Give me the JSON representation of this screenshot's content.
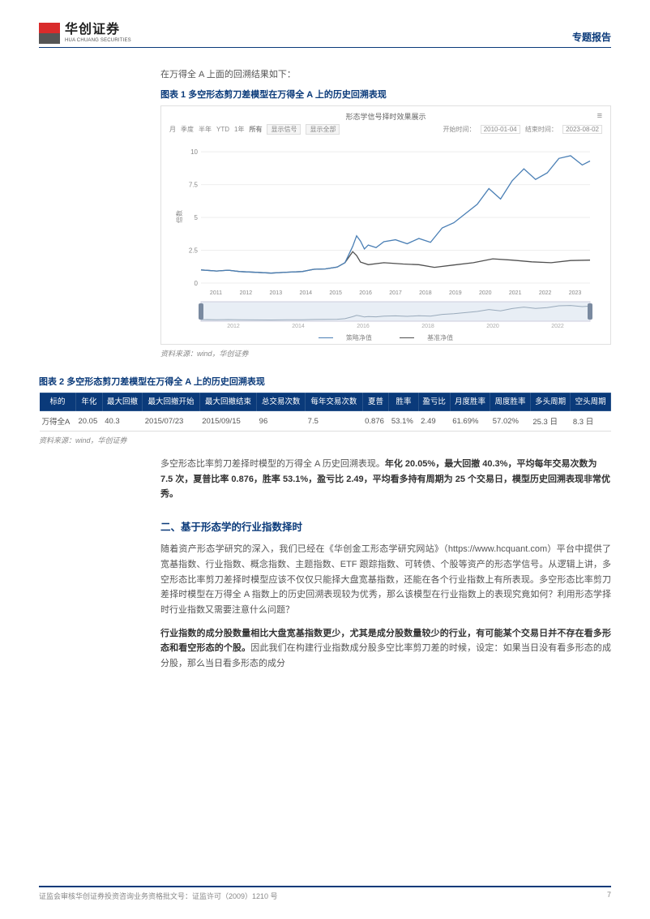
{
  "header": {
    "logo_cn": "华创证券",
    "logo_en": "HUA CHUANG SECURITIES",
    "logo_colors": [
      "#d92b2b",
      "#d92b2b",
      "#555555",
      "#555555"
    ],
    "doc_type": "专题报告"
  },
  "intro_line": "在万得全 A 上面的回溯结果如下：",
  "chart1": {
    "title": "图表 1   多空形态剪刀差模型在万得全 A 上的历史回溯表现",
    "chart_head": "形态学信号择时效果展示",
    "range_labels": [
      "月",
      "季度",
      "半年",
      "YTD",
      "1年",
      "所有"
    ],
    "btn_signal": "显示信号",
    "btn_all": "显示全部",
    "start_label": "开始时间：",
    "start_value": "2010-01-04",
    "end_label": "结束时间：",
    "end_value": "2023-08-02",
    "ylabel": "倍数",
    "y_ticks": [
      0,
      2.5,
      5,
      7.5,
      10
    ],
    "x_ticks": [
      "2011",
      "2012",
      "2013",
      "2014",
      "2015",
      "2016",
      "2017",
      "2018",
      "2019",
      "2020",
      "2021",
      "2022",
      "2023"
    ],
    "brush_ticks": [
      "2012",
      "2014",
      "2016",
      "2018",
      "2020",
      "2022"
    ],
    "line_color_strategy": "#4a7fb5",
    "line_color_base": "#505050",
    "grid_color": "#eeeeee",
    "legend_strategy": "策略净值",
    "legend_base": "基准净值",
    "strategy_series": [
      [
        0,
        1.0
      ],
      [
        0.04,
        0.92
      ],
      [
        0.07,
        0.98
      ],
      [
        0.1,
        0.88
      ],
      [
        0.14,
        0.82
      ],
      [
        0.18,
        0.76
      ],
      [
        0.22,
        0.83
      ],
      [
        0.26,
        0.88
      ],
      [
        0.29,
        1.05
      ],
      [
        0.32,
        1.08
      ],
      [
        0.35,
        1.22
      ],
      [
        0.37,
        1.55
      ],
      [
        0.39,
        2.8
      ],
      [
        0.4,
        3.6
      ],
      [
        0.41,
        3.2
      ],
      [
        0.42,
        2.6
      ],
      [
        0.43,
        2.9
      ],
      [
        0.45,
        2.7
      ],
      [
        0.47,
        3.15
      ],
      [
        0.5,
        3.3
      ],
      [
        0.53,
        3.0
      ],
      [
        0.56,
        3.4
      ],
      [
        0.59,
        3.1
      ],
      [
        0.62,
        4.2
      ],
      [
        0.65,
        4.6
      ],
      [
        0.68,
        5.3
      ],
      [
        0.71,
        6.0
      ],
      [
        0.74,
        7.2
      ],
      [
        0.77,
        6.4
      ],
      [
        0.8,
        7.8
      ],
      [
        0.83,
        8.7
      ],
      [
        0.86,
        7.9
      ],
      [
        0.89,
        8.4
      ],
      [
        0.92,
        9.5
      ],
      [
        0.95,
        9.7
      ],
      [
        0.98,
        9.0
      ],
      [
        1.0,
        9.3
      ]
    ],
    "base_series": [
      [
        0,
        1.0
      ],
      [
        0.04,
        0.92
      ],
      [
        0.07,
        0.98
      ],
      [
        0.1,
        0.88
      ],
      [
        0.14,
        0.82
      ],
      [
        0.18,
        0.76
      ],
      [
        0.22,
        0.83
      ],
      [
        0.26,
        0.88
      ],
      [
        0.29,
        1.05
      ],
      [
        0.32,
        1.08
      ],
      [
        0.35,
        1.22
      ],
      [
        0.37,
        1.55
      ],
      [
        0.39,
        2.4
      ],
      [
        0.4,
        2.1
      ],
      [
        0.41,
        1.6
      ],
      [
        0.43,
        1.4
      ],
      [
        0.47,
        1.55
      ],
      [
        0.52,
        1.45
      ],
      [
        0.56,
        1.4
      ],
      [
        0.6,
        1.2
      ],
      [
        0.65,
        1.38
      ],
      [
        0.7,
        1.55
      ],
      [
        0.75,
        1.85
      ],
      [
        0.8,
        1.75
      ],
      [
        0.85,
        1.62
      ],
      [
        0.9,
        1.55
      ],
      [
        0.95,
        1.72
      ],
      [
        1.0,
        1.75
      ]
    ],
    "ylim": [
      0,
      11
    ],
    "source": "资料来源：wind，华创证券"
  },
  "table2": {
    "title": "图表 2   多空形态剪刀差模型在万得全 A 上的历史回溯表现",
    "columns": [
      "标的",
      "年化",
      "最大回撤",
      "最大回撤开始",
      "最大回撤结束",
      "总交易次数",
      "每年交易次数",
      "夏普",
      "胜率",
      "盈亏比",
      "月度胜率",
      "周度胜率",
      "多头周期",
      "空头周期"
    ],
    "row": [
      "万得全A",
      "20.05",
      "40.3",
      "2015/07/23",
      "2015/09/15",
      "96",
      "7.5",
      "0.876",
      "53.1%",
      "2.49",
      "61.69%",
      "57.02%",
      "25.3 日",
      "8.3 日"
    ],
    "header_bg": "#0a3a7a",
    "source": "资料来源：wind，华创证券"
  },
  "para_after_table": "多空形态比率剪刀差择时模型的万得全 A 历史回溯表现。",
  "para_bold": "年化 20.05%，最大回撤 40.3%，平均每年交易次数为 7.5 次，夏普比率 0.876，胜率 53.1%，盈亏比 2.49，平均看多持有周期为 25 个交易日，模型历史回溯表现非常优秀。",
  "section2": {
    "heading": "二、基于形态学的行业指数择时",
    "p1": "随着资产形态学研究的深入，我们已经在《华创金工形态学研究网站》（https://www.hcquant.com）平台中提供了宽基指数、行业指数、概念指数、主题指数、ETF 跟踪指数、可转债、个股等资产的形态学信号。从逻辑上讲，多空形态比率剪刀差择时模型应该不仅仅只能择大盘宽基指数，还能在各个行业指数上有所表现。多空形态比率剪刀差择时模型在万得全 A 指数上的历史回溯表现较为优秀，那么该模型在行业指数上的表现究竟如何？利用形态学择时行业指数又需要注意什么问题？",
    "p2_bold": "行业指数的成分股数量相比大盘宽基指数更少，尤其是成分股数量较少的行业，有可能某个交易日并不存在看多形态和看空形态的个股。",
    "p2_rest": "因此我们在构建行业指数成分股多空比率剪刀差的时候，设定：如果当日没有看多形态的成分股，那么当日看多形态的成分"
  },
  "footer": {
    "left": "证监会审核华创证券投资咨询业务资格批文号：证监许可（2009）1210 号",
    "page": "7"
  },
  "colors": {
    "brand_blue": "#0a3a7a",
    "text_grey": "#555555",
    "light_border": "#e0e0e0"
  }
}
